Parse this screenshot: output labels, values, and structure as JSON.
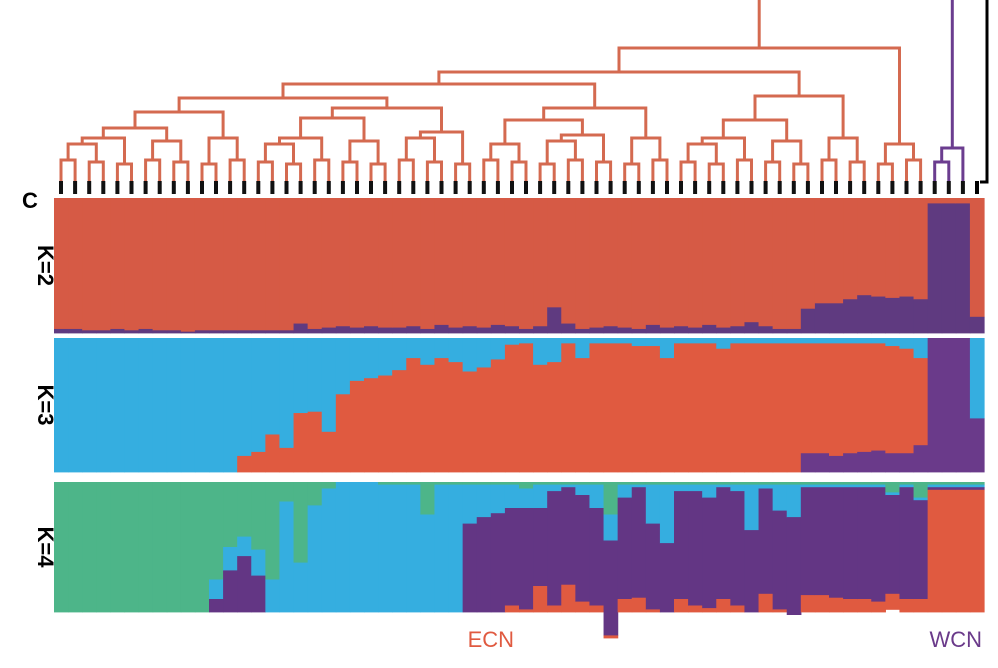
{
  "panel_label": "C",
  "colors": {
    "ecn": "#e05a40",
    "wcn": "#6a3a8a",
    "blue": "#35aee0",
    "green": "#4db589",
    "tree_ecn": "#d46a50",
    "tree_wcn": "#6b3d8f",
    "k2_red": "#d65a45",
    "k2_purple": "#5f3a80",
    "k4_purple": "#633684"
  },
  "chart_data": {
    "type": "bar",
    "stacked": true,
    "n_samples": 66,
    "groups": [
      {
        "label": "ECN",
        "start": 0,
        "end": 61,
        "color": "#e05a40"
      },
      {
        "label": "WCN",
        "start": 62,
        "end": 65,
        "color": "#6a3a8a"
      }
    ],
    "panels": [
      {
        "label": "K=2",
        "clusters": [
          {
            "color": "#d65a45",
            "values": [
              0.97,
              0.97,
              0.98,
              0.98,
              0.97,
              0.98,
              0.97,
              0.98,
              0.98,
              0.99,
              0.98,
              0.98,
              0.98,
              0.98,
              0.98,
              0.98,
              0.98,
              0.93,
              0.97,
              0.96,
              0.95,
              0.96,
              0.95,
              0.96,
              0.96,
              0.95,
              0.97,
              0.94,
              0.96,
              0.95,
              0.96,
              0.94,
              0.95,
              0.97,
              0.95,
              0.81,
              0.93,
              0.97,
              0.96,
              0.95,
              0.96,
              0.97,
              0.94,
              0.96,
              0.95,
              0.96,
              0.94,
              0.96,
              0.95,
              0.92,
              0.95,
              0.97,
              0.97,
              0.82,
              0.78,
              0.78,
              0.75,
              0.72,
              0.73,
              0.74,
              0.73,
              0.75,
              0.04,
              0.04,
              0.04,
              0.88
            ]
          },
          {
            "color": "#5f3a80",
            "values": [
              0.03,
              0.03,
              0.02,
              0.02,
              0.03,
              0.02,
              0.03,
              0.02,
              0.02,
              0.01,
              0.02,
              0.02,
              0.02,
              0.02,
              0.02,
              0.02,
              0.02,
              0.07,
              0.03,
              0.04,
              0.05,
              0.04,
              0.05,
              0.04,
              0.04,
              0.05,
              0.03,
              0.06,
              0.04,
              0.05,
              0.04,
              0.06,
              0.05,
              0.03,
              0.05,
              0.19,
              0.07,
              0.03,
              0.04,
              0.05,
              0.04,
              0.03,
              0.06,
              0.04,
              0.05,
              0.04,
              0.06,
              0.04,
              0.05,
              0.08,
              0.05,
              0.03,
              0.03,
              0.18,
              0.22,
              0.22,
              0.25,
              0.28,
              0.27,
              0.26,
              0.27,
              0.25,
              0.96,
              0.96,
              0.96,
              0.12
            ]
          }
        ]
      },
      {
        "label": "K=3",
        "clusters": [
          {
            "color": "#35aee0",
            "values": [
              1,
              1,
              1,
              1,
              1,
              1,
              1,
              1,
              1,
              1,
              1,
              1,
              1,
              0.88,
              0.85,
              0.72,
              0.82,
              0.56,
              0.55,
              0.7,
              0.42,
              0.32,
              0.3,
              0.28,
              0.24,
              0.15,
              0.2,
              0.15,
              0.18,
              0.25,
              0.22,
              0.16,
              0.05,
              0.04,
              0.2,
              0.18,
              0.04,
              0.15,
              0.04,
              0.04,
              0.04,
              0.06,
              0.06,
              0.15,
              0.04,
              0.04,
              0.04,
              0.08,
              0.04,
              0.04,
              0.04,
              0.04,
              0.04,
              0.04,
              0.04,
              0.04,
              0.04,
              0.04,
              0.04,
              0.06,
              0.08,
              0.15,
              0,
              0,
              0,
              0.6
            ]
          },
          {
            "color": "#e05a40",
            "values": [
              0,
              0,
              0,
              0,
              0,
              0,
              0,
              0,
              0,
              0,
              0,
              0,
              0,
              0.12,
              0.15,
              0.28,
              0.18,
              0.44,
              0.45,
              0.3,
              0.58,
              0.68,
              0.7,
              0.72,
              0.76,
              0.85,
              0.8,
              0.85,
              0.82,
              0.75,
              0.78,
              0.84,
              0.95,
              0.96,
              0.8,
              0.82,
              0.96,
              0.85,
              0.96,
              0.96,
              0.96,
              0.94,
              0.94,
              0.85,
              0.96,
              0.96,
              0.96,
              0.92,
              0.96,
              0.96,
              0.96,
              0.96,
              0.96,
              0.82,
              0.82,
              0.84,
              0.82,
              0.81,
              0.8,
              0.8,
              0.78,
              0.65,
              0,
              0,
              0,
              0
            ]
          },
          {
            "color": "#6a3a8a",
            "values": [
              0,
              0,
              0,
              0,
              0,
              0,
              0,
              0,
              0,
              0,
              0,
              0,
              0,
              0,
              0,
              0,
              0,
              0,
              0,
              0,
              0,
              0,
              0,
              0,
              0,
              0,
              0,
              0,
              0,
              0,
              0,
              0,
              0,
              0,
              0,
              0,
              0,
              0,
              0,
              0,
              0,
              0,
              0,
              0,
              0,
              0,
              0,
              0,
              0,
              0,
              0,
              0,
              0,
              0.14,
              0.14,
              0.12,
              0.14,
              0.15,
              0.16,
              0.14,
              0.14,
              0.2,
              1,
              1,
              1,
              0.4
            ]
          }
        ]
      },
      {
        "label": "K=4",
        "clusters": [
          {
            "color": "#4db589",
            "values": [
              1,
              1,
              1,
              1,
              1,
              1,
              1,
              1,
              1,
              1,
              1,
              0.75,
              0.5,
              0.42,
              0.52,
              0.75,
              0.15,
              0.62,
              0.18,
              0.05,
              0,
              0,
              0,
              0.02,
              0.02,
              0.02,
              0.25,
              0.02,
              0.02,
              0.02,
              0.02,
              0.02,
              0.02,
              0.05,
              0.02,
              0.02,
              0.02,
              0.02,
              0.02,
              0.25,
              0.02,
              0.02,
              0.02,
              0.02,
              0.02,
              0.02,
              0.02,
              0.02,
              0.02,
              0.02,
              0.02,
              0.02,
              0.02,
              0.02,
              0.02,
              0.02,
              0.02,
              0.02,
              0.02,
              0.08,
              0.02,
              0.12,
              0.02,
              0.02,
              0.02,
              0.02
            ]
          },
          {
            "color": "#35aee0",
            "values": [
              0,
              0,
              0,
              0,
              0,
              0,
              0,
              0,
              0,
              0,
              0,
              0.15,
              0.18,
              0.15,
              0.2,
              0.25,
              0.85,
              0.38,
              0.82,
              0.95,
              1,
              1,
              1,
              0.98,
              0.98,
              0.98,
              0.75,
              0.98,
              0.98,
              0.3,
              0.25,
              0.22,
              0.18,
              0.15,
              0.18,
              0.05,
              0.02,
              0.08,
              0.18,
              0.2,
              0.1,
              0.02,
              0.3,
              0.45,
              0.05,
              0.05,
              0.1,
              0.02,
              0.05,
              0.35,
              0.03,
              0.2,
              0.25,
              0.02,
              0.02,
              0.02,
              0.02,
              0.02,
              0.02,
              0.02,
              0.02,
              0.02,
              0.02,
              0.02,
              0.02,
              0.02
            ]
          },
          {
            "color": "#633684",
            "values": [
              0,
              0,
              0,
              0,
              0,
              0,
              0,
              0,
              0,
              0,
              0,
              0.1,
              0.32,
              0.43,
              0.28,
              0,
              0,
              0,
              0,
              0,
              0,
              0,
              0,
              0,
              0,
              0,
              0,
              0,
              0,
              0.68,
              0.73,
              0.76,
              0.75,
              0.78,
              0.6,
              0.88,
              0.75,
              0.82,
              0.75,
              0.73,
              0.78,
              0.85,
              0.66,
              0.53,
              0.83,
              0.88,
              0.85,
              0.86,
              0.88,
              0.63,
              0.81,
              0.76,
              0.75,
              0.83,
              0.83,
              0.85,
              0.86,
              0.86,
              0.88,
              0.76,
              0.86,
              0.76,
              0.02,
              0.02,
              0.02,
              0.02
            ]
          },
          {
            "color": "#e05a40",
            "values": [
              0,
              0,
              0,
              0,
              0,
              0,
              0,
              0,
              0,
              0,
              0,
              0,
              0,
              0,
              0,
              0,
              0,
              0,
              0,
              0,
              0,
              0,
              0,
              0,
              0,
              0,
              0,
              0,
              0,
              0,
              0,
              0,
              0.05,
              0.02,
              0.2,
              0.05,
              0.21,
              0.08,
              0.05,
              0.02,
              0.1,
              0.11,
              0.02,
              0,
              0.1,
              0.05,
              0.03,
              0.1,
              0.05,
              0,
              0.14,
              0.02,
              0,
              0.13,
              0.13,
              0.11,
              0.1,
              0.1,
              0.08,
              0.12,
              0.1,
              0.1,
              0.94,
              0.94,
              0.94,
              0.94
            ]
          }
        ]
      }
    ]
  }
}
